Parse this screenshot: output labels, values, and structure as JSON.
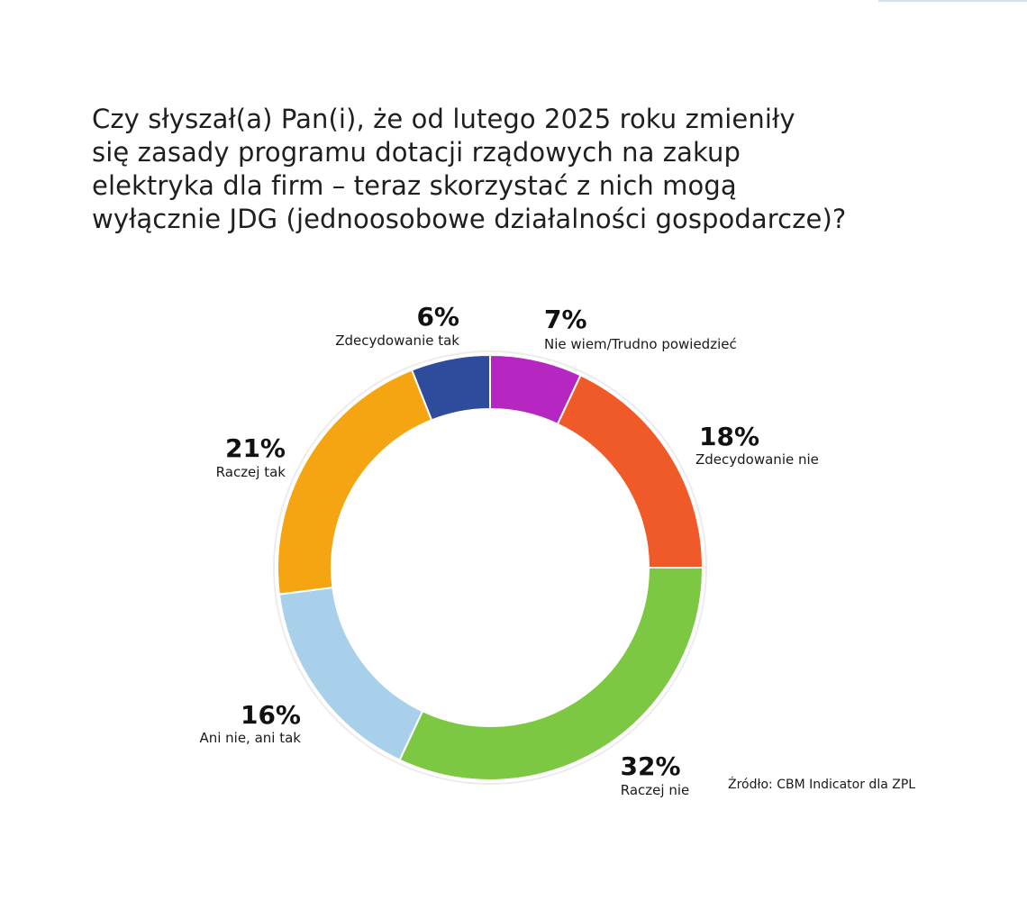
{
  "title_lines": [
    "Czy słyszał(a) Pan(i), że od lutego 2025 roku zmieniły",
    "się zasady programu dotacji rządowych na zakup",
    "elektryka dla firm – teraz skorzystać z nich mogą",
    "wyłącznie JDG (jednoosobowe działalności gospodarcze)?"
  ],
  "source": "Źródło: CBM Indicator dla ZPL",
  "chart_data": {
    "type": "pie",
    "variant": "donut",
    "title": "Czy słyszał(a) Pan(i), że od lutego 2025 roku zmieniły się zasady programu dotacji rządowych na zakup elektryka dla firm – teraz skorzystać z nich mogą wyłącznie JDG (jednoosobowe działalności gospodarcze)?",
    "unit": "%",
    "slices": [
      {
        "label": "Nie wiem/Trudno powiedzieć",
        "value": 7,
        "value_label": "7%",
        "color": "#b627c2"
      },
      {
        "label": "Zdecydowanie nie",
        "value": 18,
        "value_label": "18%",
        "color": "#f05a28"
      },
      {
        "label": "Raczej nie",
        "value": 32,
        "value_label": "32%",
        "color": "#7dc843"
      },
      {
        "label": "Ani nie, ani tak",
        "value": 16,
        "value_label": "16%",
        "color": "#a9d0eb"
      },
      {
        "label": "Raczej tak",
        "value": 21,
        "value_label": "21%",
        "color": "#f5a511"
      },
      {
        "label": "Zdecydowanie tak",
        "value": 6,
        "value_label": "6%",
        "color": "#2f4b9c"
      }
    ],
    "start": "top",
    "direction": "clockwise"
  }
}
